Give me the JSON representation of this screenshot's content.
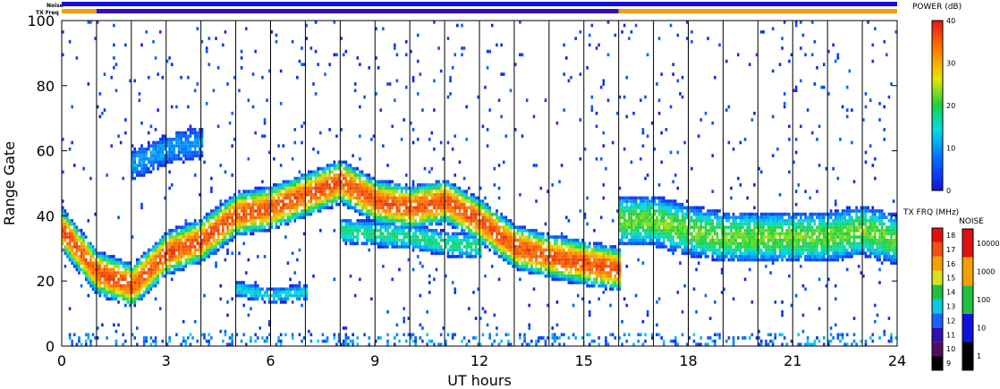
{
  "chart_data": {
    "type": "heatmap",
    "xlabel": "UT hours",
    "ylabel": "Range Gate",
    "xlim": [
      0,
      24
    ],
    "ylim": [
      0,
      100
    ],
    "x_ticks": [
      "0",
      "3",
      "6",
      "9",
      "12",
      "15",
      "18",
      "21",
      "24"
    ],
    "y_ticks": [
      "0",
      "20",
      "40",
      "60",
      "80",
      "100"
    ],
    "vertical_hour_lines": [
      1,
      2,
      3,
      4,
      5,
      6,
      7,
      8,
      9,
      10,
      11,
      12,
      13,
      14,
      15,
      16,
      17,
      18,
      19,
      20,
      21,
      22,
      23
    ],
    "status_bars": [
      {
        "label": "Noise",
        "segments": [
          {
            "x0": 0,
            "x1": 24,
            "color": "#1010e0"
          }
        ]
      },
      {
        "label": "TX Freq",
        "segments": [
          {
            "x0": 0,
            "x1": 1,
            "color": "#f5a000"
          },
          {
            "x0": 1,
            "x1": 16,
            "color": "#3010b0"
          },
          {
            "x0": 16,
            "x1": 24,
            "color": "#f5a000"
          }
        ]
      }
    ],
    "echo_bands": [
      {
        "x": [
          0,
          1,
          2,
          3,
          4,
          5,
          6,
          7,
          8,
          9,
          10,
          11,
          12,
          13,
          14,
          15,
          16
        ],
        "y": [
          35,
          22,
          18,
          28,
          32,
          40,
          42,
          46,
          50,
          44,
          42,
          44,
          38,
          30,
          27,
          25,
          23
        ],
        "width": 14,
        "peak_db": 36
      },
      {
        "x": [
          8,
          9,
          10,
          11,
          12
        ],
        "y": [
          35,
          34,
          33,
          31,
          30
        ],
        "width": 8,
        "peak_db": 18
      },
      {
        "x": [
          2,
          3,
          4
        ],
        "y": [
          55,
          60,
          62
        ],
        "width": 10,
        "peak_db": 10
      },
      {
        "x": [
          5,
          6,
          7
        ],
        "y": [
          17,
          15,
          16
        ],
        "width": 5,
        "peak_db": 14
      },
      {
        "x": [
          16,
          17,
          18,
          19,
          20,
          21,
          22,
          23,
          24
        ],
        "y": [
          38,
          38,
          35,
          33,
          33,
          33,
          33,
          35,
          32
        ],
        "width": 16,
        "peak_db": 22
      }
    ],
    "power_colorbar": {
      "title": "POWER (dB)",
      "ticks": [
        "0",
        "10",
        "20",
        "30",
        "40"
      ],
      "range": [
        0,
        40
      ]
    },
    "txfreq_legend": {
      "title": "TX FRQ (MHz)",
      "ticks": [
        "9",
        "10",
        "11",
        "12",
        "13",
        "14",
        "15",
        "16",
        "17",
        "18"
      ]
    },
    "noise_legend": {
      "title": "NOISE",
      "ticks": [
        "1",
        "10",
        "100",
        "1000",
        "10000"
      ]
    }
  }
}
